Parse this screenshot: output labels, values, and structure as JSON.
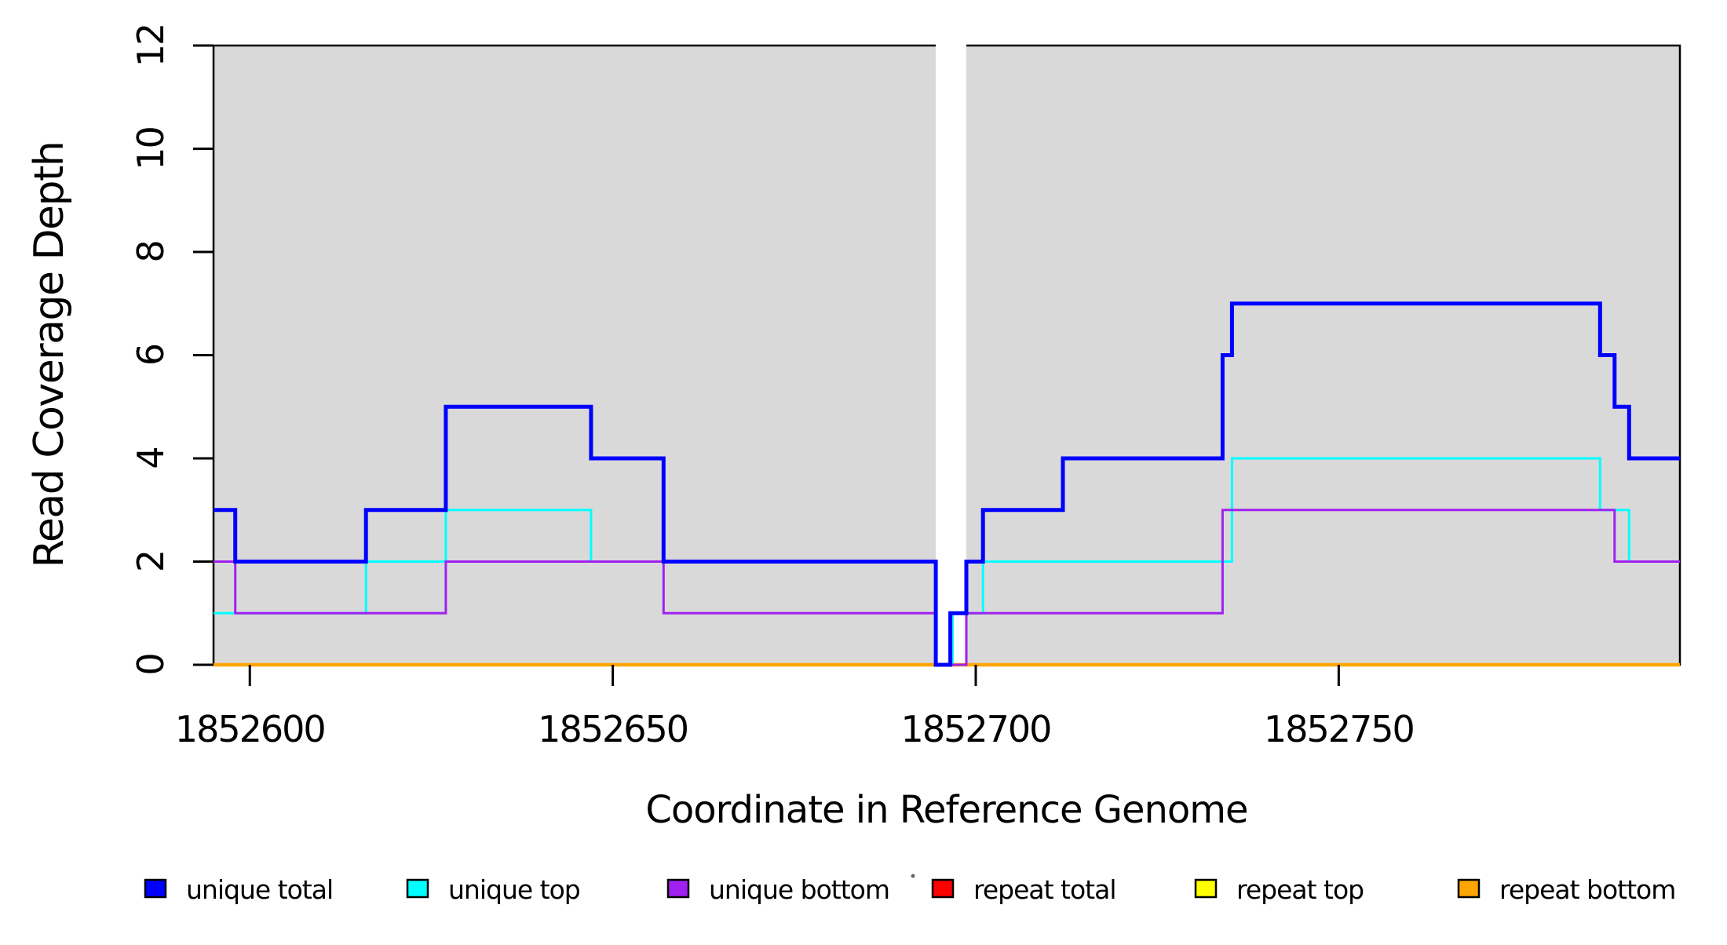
{
  "chart_data": {
    "type": "line",
    "subtype": "step",
    "title": "",
    "xlabel": "Coordinate in Reference Genome",
    "ylabel": "Read Coverage Depth",
    "xlim": [
      1852595,
      1852797
    ],
    "ylim": [
      0,
      12
    ],
    "x_ticks": [
      1852600,
      1852650,
      1852700,
      1852750
    ],
    "y_ticks": [
      0,
      2,
      4,
      6,
      8,
      10,
      12
    ],
    "grid": false,
    "plot_bg": "#D9D9D9",
    "axis_color": "#000000",
    "gap_band": {
      "from": 1852694.5,
      "to": 1852698.7,
      "color": "#FFFFFF"
    },
    "legend_position": "bottom",
    "series": [
      {
        "name": "unique total",
        "color": "#0000FF",
        "points": [
          [
            1852595,
            3
          ],
          [
            1852598,
            2
          ],
          [
            1852616,
            3
          ],
          [
            1852627,
            5
          ],
          [
            1852647,
            4
          ],
          [
            1852657,
            2
          ],
          [
            1852694.5,
            0
          ],
          [
            1852696.5,
            1
          ],
          [
            1852698.7,
            2
          ],
          [
            1852701,
            3
          ],
          [
            1852712,
            4
          ],
          [
            1852734,
            6
          ],
          [
            1852735.3,
            7
          ],
          [
            1852786,
            6
          ],
          [
            1852788,
            5
          ],
          [
            1852790,
            4
          ]
        ]
      },
      {
        "name": "unique top",
        "color": "#00FFFF",
        "points": [
          [
            1852595,
            1
          ],
          [
            1852616,
            2
          ],
          [
            1852627,
            3
          ],
          [
            1852647,
            2
          ],
          [
            1852694.5,
            0
          ],
          [
            1852696.8,
            1
          ],
          [
            1852701,
            2
          ],
          [
            1852735.3,
            4
          ],
          [
            1852786,
            3
          ],
          [
            1852790,
            2
          ]
        ]
      },
      {
        "name": "unique bottom",
        "color": "#A020F0",
        "points": [
          [
            1852595,
            2
          ],
          [
            1852598,
            1
          ],
          [
            1852627,
            2
          ],
          [
            1852657,
            1
          ],
          [
            1852694.5,
            0
          ],
          [
            1852698.7,
            1
          ],
          [
            1852734,
            3
          ],
          [
            1852788,
            2
          ]
        ]
      },
      {
        "name": "repeat total",
        "color": "#FF0000",
        "points": [
          [
            1852595,
            0
          ]
        ]
      },
      {
        "name": "repeat top",
        "color": "#FFFF00",
        "points": [
          [
            1852595,
            0
          ]
        ]
      },
      {
        "name": "repeat bottom",
        "color": "#FFA500",
        "points": [
          [
            1852595,
            0
          ]
        ]
      }
    ]
  },
  "legend": {
    "items": [
      {
        "label": "unique total",
        "color": "#0000FF"
      },
      {
        "label": "unique top",
        "color": "#00FFFF"
      },
      {
        "label": "unique bottom",
        "color": "#A020F0"
      },
      {
        "label": "repeat total",
        "color": "#FF0000"
      },
      {
        "label": "repeat top",
        "color": "#FFFF00"
      },
      {
        "label": "repeat bottom",
        "color": "#FFA500"
      }
    ]
  }
}
